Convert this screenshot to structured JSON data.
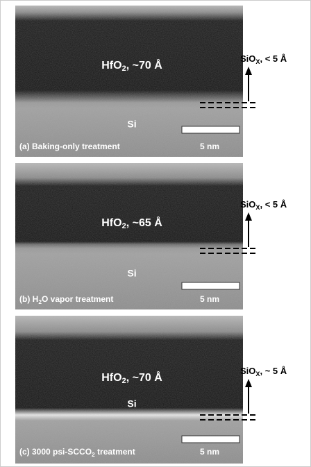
{
  "panels": [
    {
      "layer": [
        "HfO",
        "2",
        ", ~70 Å"
      ],
      "substrate": "Si",
      "interface": [
        "SiO",
        "X",
        ", < 5 Å"
      ],
      "scale_bar": "5 nm",
      "caption": [
        "(a) Baking-only treatment"
      ]
    },
    {
      "layer": [
        "HfO",
        "2",
        ", ~65 Å"
      ],
      "substrate": "Si",
      "interface": [
        "SiO",
        "X",
        ", < 5 Å"
      ],
      "scale_bar": "5 nm",
      "caption": [
        "(b) H",
        "2",
        "O vapor treatment"
      ]
    },
    {
      "layer": [
        "HfO",
        "2",
        ", ~70 Å"
      ],
      "substrate": "Si",
      "interface": [
        "SiO",
        "X",
        ", ~ 5 Å"
      ],
      "scale_bar": "5 nm",
      "caption": [
        "(c) 3000 psi-SCCO",
        "2",
        " treatment"
      ]
    }
  ]
}
